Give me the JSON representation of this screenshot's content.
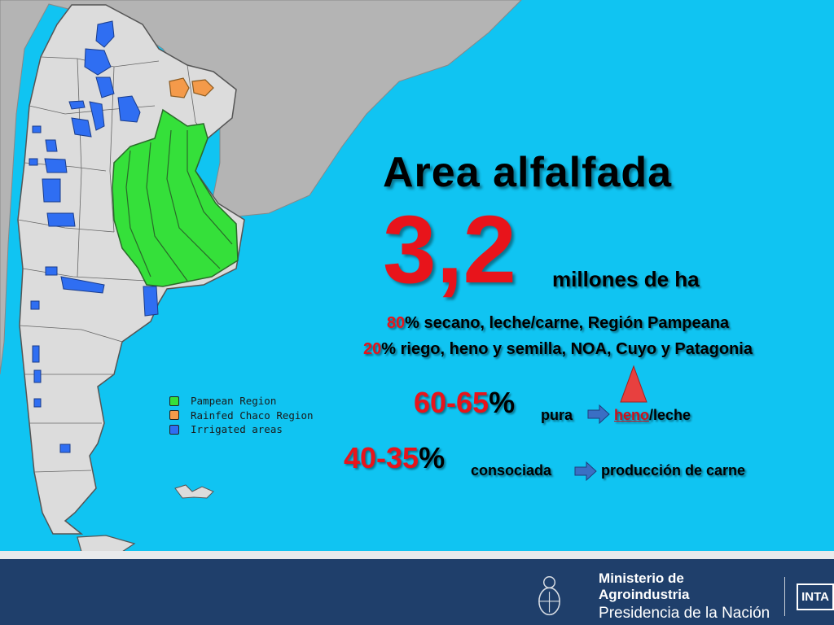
{
  "title": "Area alfalfada",
  "area_value": "3,2",
  "area_unit": "millones de ha",
  "line1": {
    "pct": "80",
    "text": "% secano, leche/carne, Región Pampeana"
  },
  "line2": {
    "pct": "20",
    "text": "% riego, heno y semilla, NOA, Cuyo y Patagonia"
  },
  "row_pura": {
    "range": "60-65",
    "pct": "%",
    "word": "pura",
    "heno": "heno",
    "leche": "/leche"
  },
  "row_consociada": {
    "range": "40-35",
    "pct": "%",
    "word": "consociada",
    "result": "producción de carne"
  },
  "legend": [
    {
      "label": "Pampean Region",
      "color": "#35e03a"
    },
    {
      "label": "Rainfed Chaco Region",
      "color": "#f49a4a"
    },
    {
      "label": "Irrigated areas",
      "color": "#2f6ef2"
    }
  ],
  "footer": {
    "ministry": "Ministerio de Agroindustria",
    "presidency": "Presidencia de la Nación",
    "logo_text": "INTA"
  },
  "colors": {
    "sea": "#10c4f2",
    "land": "#dcdcdc",
    "neighbor": "#b4b4b4",
    "accent_red": "#e8141b",
    "footer_bg": "#1f3f6b",
    "arrow": "#3a6fc4"
  }
}
